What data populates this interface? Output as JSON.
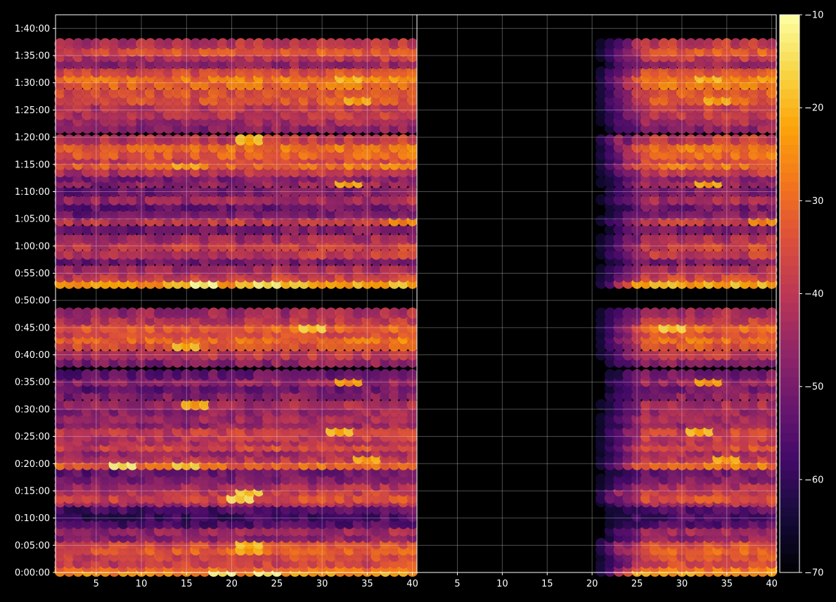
{
  "chart_data": {
    "type": "heatmap",
    "title": "",
    "colormap": "inferno",
    "background": "#000000",
    "grid": true,
    "panels": [
      {
        "name": "left",
        "xlim": [
          1,
          40
        ],
        "xticks": [
          "5",
          "10",
          "15",
          "20",
          "25",
          "30",
          "35",
          "40"
        ],
        "xtick_values": [
          5,
          10,
          15,
          20,
          25,
          30,
          35,
          40
        ],
        "start_x": 1
      },
      {
        "name": "right",
        "xlim": [
          1,
          40
        ],
        "xticks": [
          "5",
          "10",
          "15",
          "20",
          "25",
          "30",
          "35",
          "40"
        ],
        "xtick_values": [
          5,
          10,
          15,
          20,
          25,
          30,
          35,
          40
        ],
        "start_x": 20
      }
    ],
    "y_axis": {
      "unit": "time (h:mm:ss)",
      "ylim_seconds": [
        0,
        6150
      ],
      "tick_labels": [
        "0:00:00",
        "0:05:00",
        "0:10:00",
        "0:15:00",
        "0:20:00",
        "0:25:00",
        "0:30:00",
        "0:35:00",
        "0:40:00",
        "0:45:00",
        "0:50:00",
        "0:55:00",
        "1:00:00",
        "1:05:00",
        "1:10:00",
        "1:15:00",
        "1:20:00",
        "1:25:00",
        "1:30:00",
        "1:35:00",
        "1:40:00"
      ],
      "tick_seconds": [
        0,
        300,
        600,
        900,
        1200,
        1500,
        1800,
        2100,
        2400,
        2700,
        3000,
        3300,
        3600,
        3900,
        4200,
        4500,
        4800,
        5100,
        5400,
        5700,
        6000
      ]
    },
    "colorbar": {
      "range": [
        -70,
        -10
      ],
      "ticks": [
        "−10",
        "−20",
        "−30",
        "−40",
        "−50",
        "−60",
        "−70"
      ],
      "tick_values": [
        -10,
        -20,
        -30,
        -40,
        -50,
        -60,
        -70
      ]
    },
    "bands": [
      {
        "t": 15,
        "level": -25,
        "hot": [
          [
            19,
            -15
          ],
          [
            24,
            -15
          ]
        ]
      },
      {
        "t": 60,
        "level": -30
      },
      {
        "t": 105,
        "level": -38
      },
      {
        "t": 180,
        "level": -36
      },
      {
        "t": 250,
        "level": -32,
        "hot": [
          [
            22,
            -24
          ]
        ]
      },
      {
        "t": 320,
        "level": -36,
        "hot": [
          [
            22,
            -22
          ]
        ]
      },
      {
        "t": 390,
        "level": -48
      },
      {
        "t": 460,
        "level": -45
      },
      {
        "t": 540,
        "level": -56
      },
      {
        "t": 620,
        "level": -58
      },
      {
        "t": 700,
        "level": -56
      },
      {
        "t": 780,
        "level": -42
      },
      {
        "t": 820,
        "level": -36,
        "hot": [
          [
            21,
            -18
          ]
        ]
      },
      {
        "t": 900,
        "level": -40,
        "hot": [
          [
            22,
            -20
          ]
        ]
      },
      {
        "t": 960,
        "level": -44
      },
      {
        "t": 1030,
        "level": -50
      },
      {
        "t": 1110,
        "level": -52
      },
      {
        "t": 1190,
        "level": -30,
        "hot": [
          [
            8,
            -16
          ],
          [
            15,
            -20
          ]
        ]
      },
      {
        "t": 1260,
        "level": -40,
        "hot": [
          [
            35,
            -24
          ]
        ]
      },
      {
        "t": 1330,
        "level": -44
      },
      {
        "t": 1390,
        "level": -36
      },
      {
        "t": 1450,
        "level": -42
      },
      {
        "t": 1500,
        "level": -40
      },
      {
        "t": 1560,
        "level": -38,
        "hot": [
          [
            32,
            -22
          ]
        ]
      },
      {
        "t": 1640,
        "level": -46
      },
      {
        "t": 1700,
        "level": -44
      },
      {
        "t": 1780,
        "level": -46
      },
      {
        "t": 1850,
        "level": -44,
        "hot": [
          [
            16,
            -24
          ]
        ]
      },
      {
        "t": 1950,
        "level": -48
      },
      {
        "t": 2030,
        "level": -52
      },
      {
        "t": 2110,
        "level": -46,
        "hot": [
          [
            33,
            -26
          ]
        ]
      },
      {
        "t": 2180,
        "level": -52
      },
      {
        "t": 2320,
        "level": -48
      },
      {
        "t": 2400,
        "level": -40
      },
      {
        "t": 2500,
        "level": -34,
        "hot": [
          [
            15,
            -22
          ]
        ]
      },
      {
        "t": 2580,
        "level": -30
      },
      {
        "t": 2640,
        "level": -36
      },
      {
        "t": 2700,
        "level": -32,
        "hot": [
          [
            29,
            -20
          ]
        ]
      },
      {
        "t": 2780,
        "level": -40
      },
      {
        "t": 2860,
        "level": -44
      },
      {
        "t": 3190,
        "level": -22,
        "hot": [
          [
            17,
            -14
          ],
          [
            24,
            -16
          ]
        ]
      },
      {
        "t": 3260,
        "level": -38
      },
      {
        "t": 3340,
        "level": -44
      },
      {
        "t": 3440,
        "level": -50
      },
      {
        "t": 3510,
        "level": -40
      },
      {
        "t": 3600,
        "level": -38
      },
      {
        "t": 3680,
        "level": -44
      },
      {
        "t": 3780,
        "level": -50
      },
      {
        "t": 3880,
        "level": -38,
        "hot": [
          [
            39,
            -28
          ]
        ]
      },
      {
        "t": 3950,
        "level": -50
      },
      {
        "t": 4040,
        "level": -52
      },
      {
        "t": 4110,
        "level": -44
      },
      {
        "t": 4200,
        "level": -50
      },
      {
        "t": 4300,
        "level": -46,
        "hot": [
          [
            33,
            -24
          ]
        ]
      },
      {
        "t": 4360,
        "level": -50
      },
      {
        "t": 4420,
        "level": -40
      },
      {
        "t": 4500,
        "level": -30,
        "hot": [
          [
            15,
            -24
          ]
        ]
      },
      {
        "t": 4560,
        "level": -38
      },
      {
        "t": 4610,
        "level": -32
      },
      {
        "t": 4690,
        "level": -30
      },
      {
        "t": 4770,
        "level": -40,
        "hot": [
          [
            22,
            -22
          ]
        ]
      },
      {
        "t": 4900,
        "level": -48
      },
      {
        "t": 4980,
        "level": -44
      },
      {
        "t": 5050,
        "level": -40
      },
      {
        "t": 5130,
        "level": -40
      },
      {
        "t": 5210,
        "level": -34,
        "hot": [
          [
            34,
            -24
          ]
        ]
      },
      {
        "t": 5290,
        "level": -34
      },
      {
        "t": 5380,
        "level": -30
      },
      {
        "t": 5460,
        "level": -28,
        "hot": [
          [
            33,
            -22
          ]
        ]
      },
      {
        "t": 5520,
        "level": -36
      },
      {
        "t": 5610,
        "level": -46
      },
      {
        "t": 5690,
        "level": -40
      },
      {
        "t": 5750,
        "level": -34
      },
      {
        "t": 5830,
        "level": -40
      }
    ]
  }
}
